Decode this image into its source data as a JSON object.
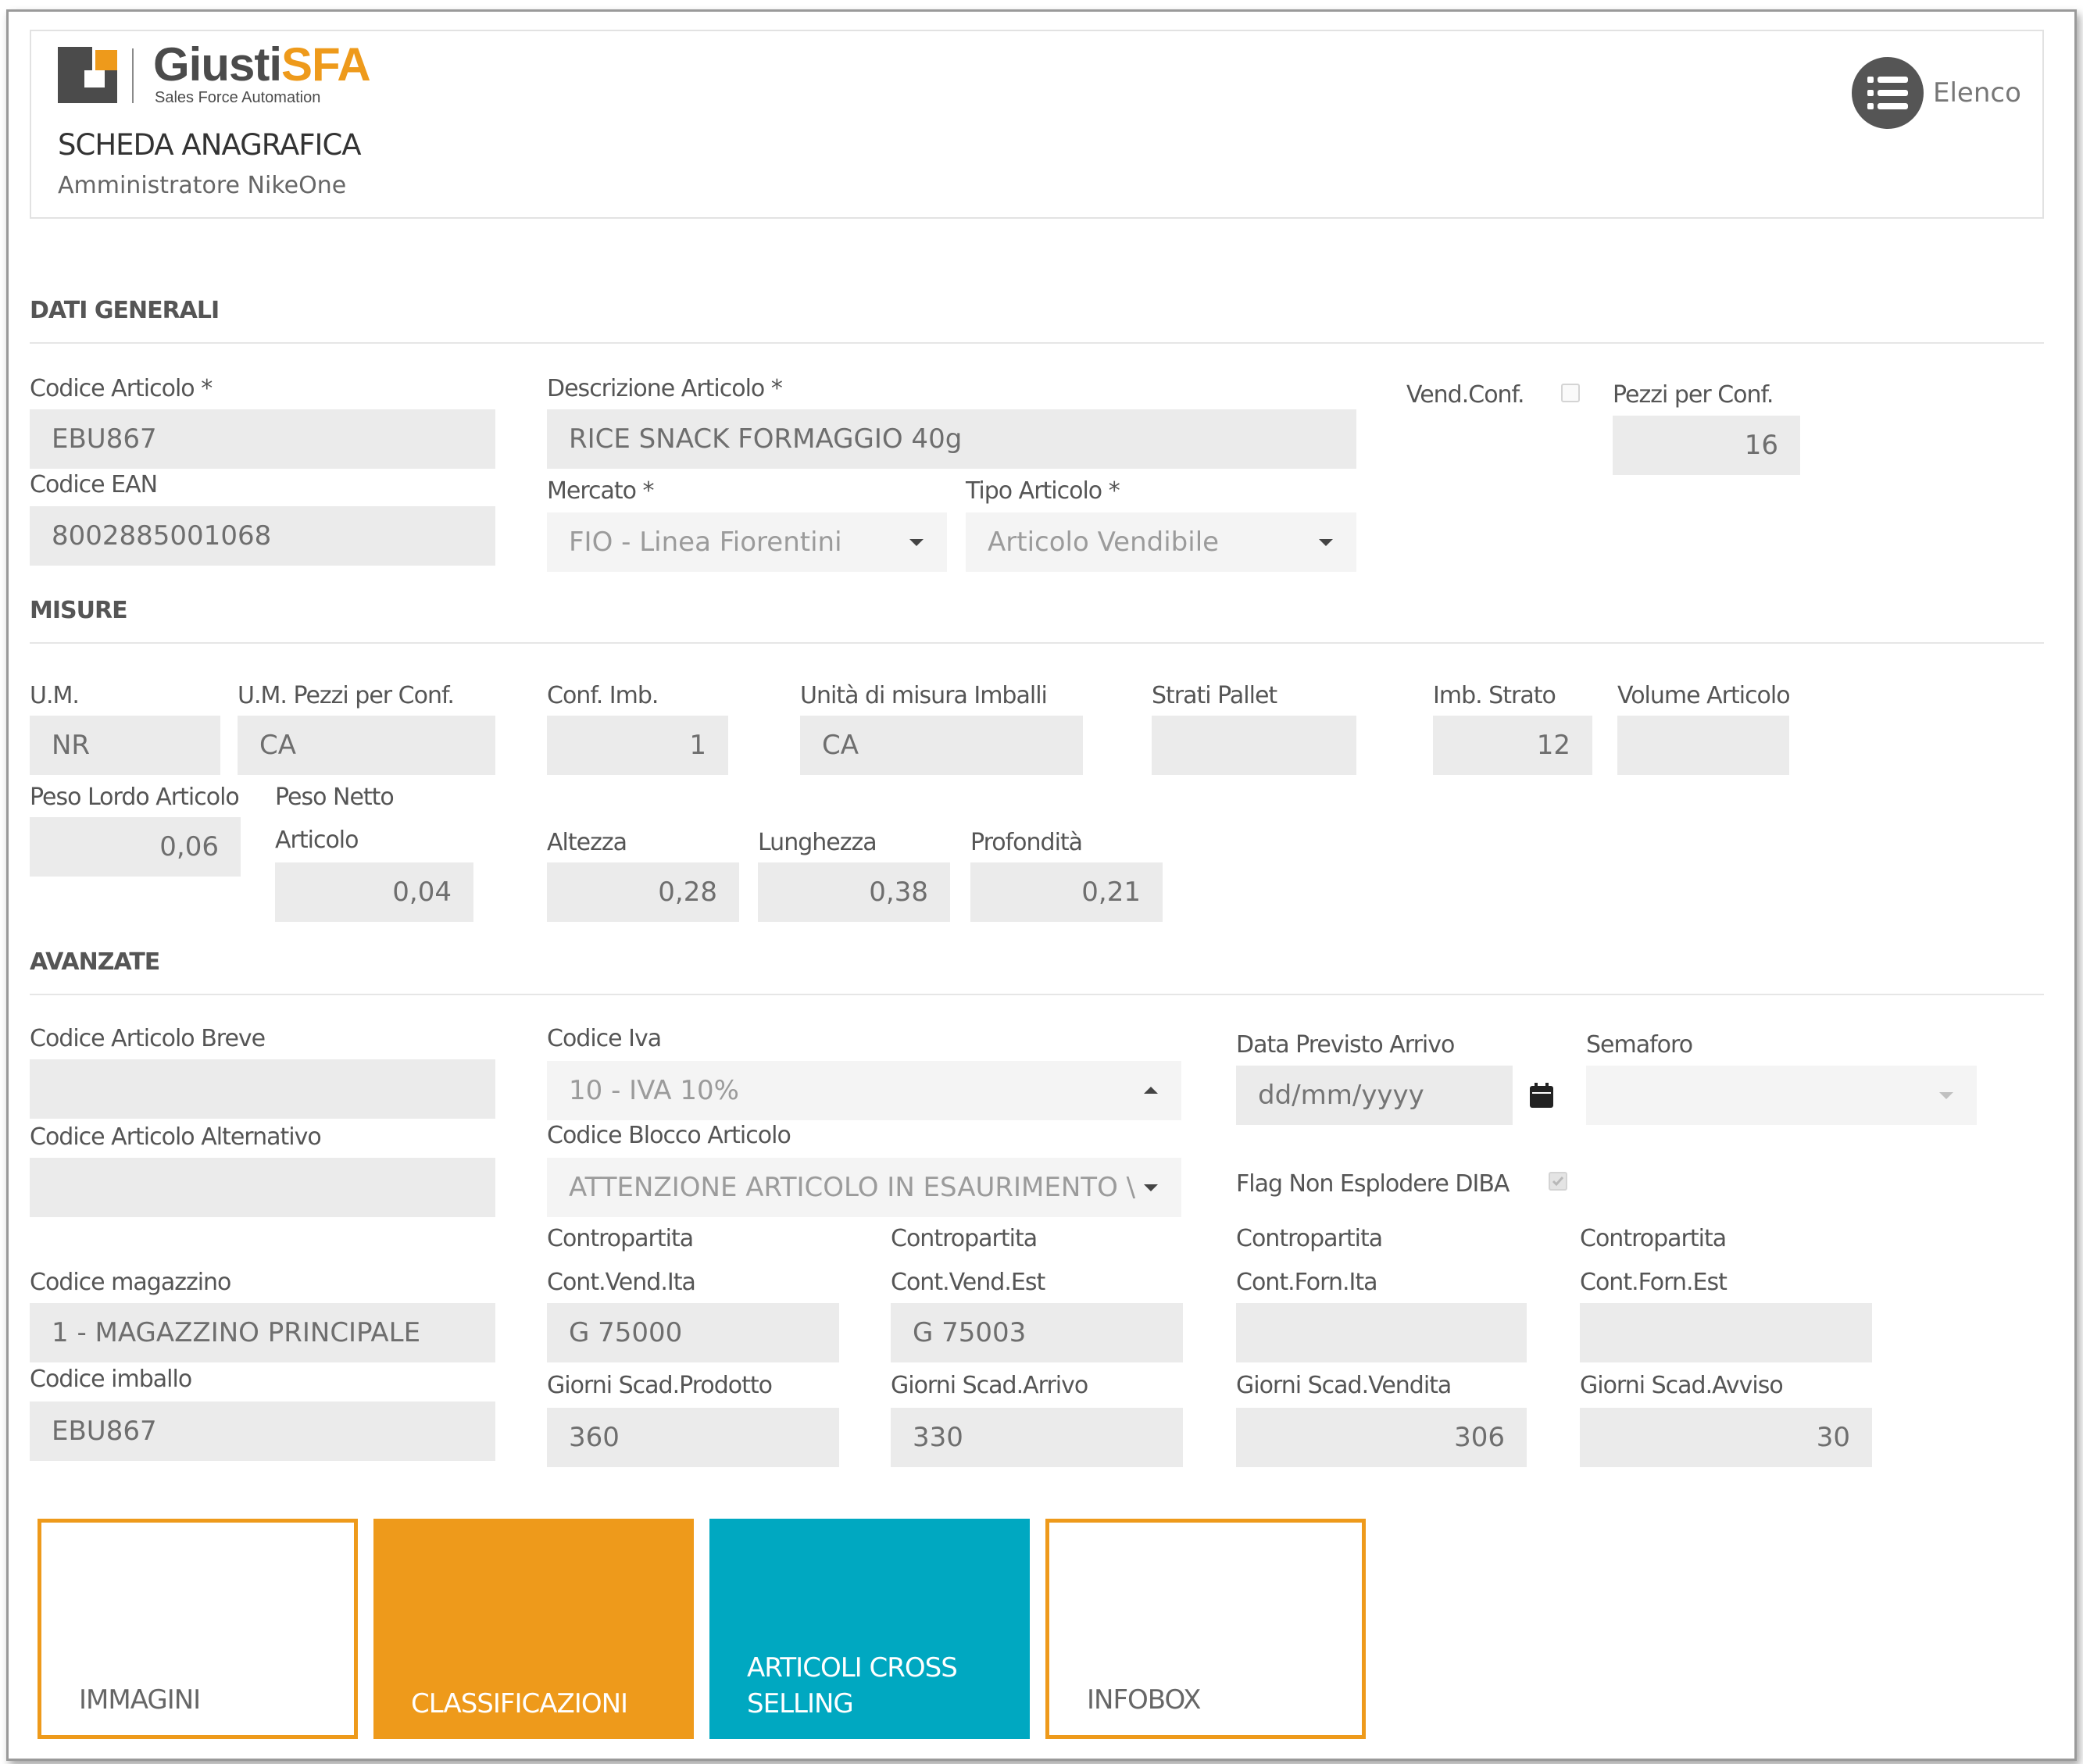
{
  "brand": {
    "name_a": "Giusti",
    "name_b": "SFA",
    "tagline": "Sales Force Automation",
    "accent": "#ee9a1b",
    "gray": "#4b4b4b"
  },
  "header": {
    "title": "SCHEDA ANAGRAFICA",
    "subtitle": "Amministratore NikeOne",
    "list_button_label": "Elenco",
    "list_button_icon": "list-icon"
  },
  "sections": {
    "general": "DATI GENERALI",
    "measures": "MISURE",
    "advanced": "AVANZATE"
  },
  "general": {
    "codice_articolo": {
      "label": "Codice Articolo *",
      "value": "EBU867"
    },
    "codice_ean": {
      "label": "Codice EAN",
      "value": "8002885001068"
    },
    "descrizione": {
      "label": "Descrizione Articolo *",
      "value": "RICE SNACK FORMAGGIO 40g"
    },
    "mercato": {
      "label": "Mercato *",
      "value": "FIO - Linea Fiorentini"
    },
    "tipo_articolo": {
      "label": "Tipo Articolo *",
      "value": "Articolo Vendibile"
    },
    "vend_conf": {
      "label": "Vend.Conf.",
      "checked": false
    },
    "pezzi_per_conf": {
      "label": "Pezzi per Conf.",
      "value": "16"
    }
  },
  "measures": {
    "um": {
      "label": "U.M.",
      "value": "NR"
    },
    "um_pezzi": {
      "label": "U.M. Pezzi per Conf.",
      "value": "CA"
    },
    "conf_imb": {
      "label": "Conf. Imb.",
      "value": "1"
    },
    "unita_imballi": {
      "label": "Unità di misura Imballi",
      "value": "CA"
    },
    "strati_pallet": {
      "label": "Strati Pallet",
      "value": ""
    },
    "imb_strato": {
      "label": "Imb. Strato",
      "value": "12"
    },
    "volume": {
      "label": "Volume Articolo",
      "value": ""
    },
    "peso_lordo": {
      "label": "Peso Lordo Articolo",
      "value": "0,06"
    },
    "peso_netto": {
      "label_1": "Peso Netto",
      "label_2": "Articolo",
      "value": "0,04"
    },
    "altezza": {
      "label": "Altezza",
      "value": "0,28"
    },
    "lunghezza": {
      "label": "Lunghezza",
      "value": "0,38"
    },
    "profondita": {
      "label": "Profondità",
      "value": "0,21"
    }
  },
  "advanced": {
    "codice_breve": {
      "label": "Codice Articolo Breve",
      "value": ""
    },
    "codice_alternativo": {
      "label": "Codice Articolo Alternativo",
      "value": ""
    },
    "codice_iva": {
      "label": "Codice Iva",
      "value": "10 - IVA 10%"
    },
    "codice_blocco": {
      "label": "Codice Blocco Articolo",
      "value": "ATTENZIONE ARTICOLO IN ESAURIMENTO \\"
    },
    "data_arrivo": {
      "label": "Data Previsto Arrivo",
      "placeholder": "dd/mm/yyyy",
      "icon": "calendar-icon"
    },
    "semaforo": {
      "label": "Semaforo",
      "value": ""
    },
    "flag_diba": {
      "label": "Flag Non Esplodere DIBA",
      "checked": true
    },
    "codice_magazzino": {
      "label": "Codice magazzino",
      "value": "1 - MAGAZZINO PRINCIPALE"
    },
    "codice_imballo": {
      "label": "Codice imballo",
      "value": "EBU867"
    },
    "cp_vend_ita": {
      "label_1": "Contropartita",
      "label_2": "Cont.Vend.Ita",
      "value": "G 75000"
    },
    "cp_vend_est": {
      "label_1": "Contropartita",
      "label_2": "Cont.Vend.Est",
      "value": "G 75003"
    },
    "cp_forn_ita": {
      "label_1": "Contropartita",
      "label_2": "Cont.Forn.Ita",
      "value": ""
    },
    "cp_forn_est": {
      "label_1": "Contropartita",
      "label_2": "Cont.Forn.Est",
      "value": ""
    },
    "gg_prodotto": {
      "label": "Giorni Scad.Prodotto",
      "value": "360"
    },
    "gg_arrivo": {
      "label": "Giorni Scad.Arrivo",
      "value": "330"
    },
    "gg_vendita": {
      "label": "Giorni Scad.Vendita",
      "value": "306"
    },
    "gg_avviso": {
      "label": "Giorni Scad.Avviso",
      "value": "30"
    }
  },
  "tiles": [
    {
      "label": "IMMAGINI",
      "style": "outline"
    },
    {
      "label": "CLASSIFICAZIONI",
      "style": "orange",
      "color": "#ee9a1b"
    },
    {
      "label": "ARTICOLI CROSS\nSELLING",
      "style": "teal",
      "color": "#00a8c1"
    },
    {
      "label": "INFOBOX",
      "style": "outline"
    }
  ]
}
